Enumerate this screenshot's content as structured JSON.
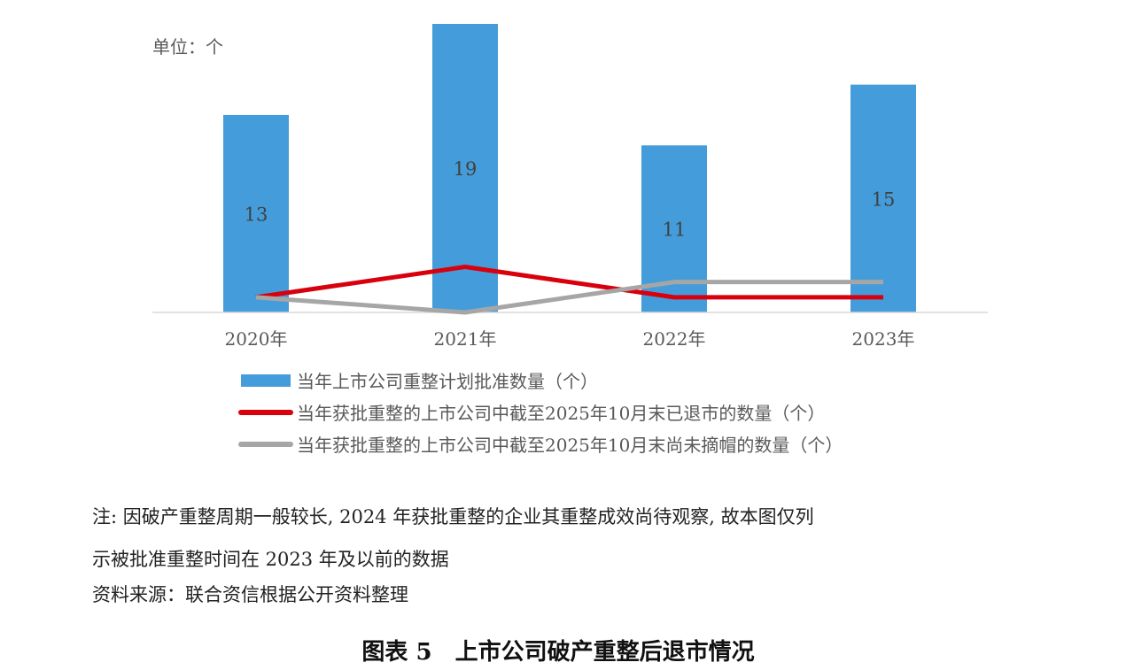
{
  "chart_data": {
    "type": "bar",
    "unit_label": "单位：个",
    "categories": [
      "2020年",
      "2021年",
      "2022年",
      "2023年"
    ],
    "series": [
      {
        "name": "当年上市公司重整计划批准数量（个）",
        "kind": "bar",
        "color": "#449DDA",
        "values": [
          13,
          19,
          11,
          15
        ]
      },
      {
        "name": "当年获批重整的上市公司中截至2025年10月末已退市的数量（个）",
        "kind": "line",
        "color": "#D9000D",
        "values": [
          1,
          3,
          1,
          1
        ]
      },
      {
        "name": "当年获批重整的上市公司中截至2025年10月末尚未摘帽的数量（个）",
        "kind": "line",
        "color": "#A6A6A6",
        "values": [
          1,
          0,
          2,
          2
        ]
      }
    ],
    "ylim": [
      0,
      19
    ],
    "grid": false,
    "legend": "bottom"
  },
  "notes": {
    "line1": "注: 因破产重整周期一般较长, 2024 年获批重整的企业其重整成效尚待观察, 故本图仅列",
    "line2": "示被批准重整时间在 2023 年及以前的数据",
    "source": "资料来源：联合资信根据公开资料整理"
  },
  "caption": "图表 5　上市公司破产重整后退市情况"
}
